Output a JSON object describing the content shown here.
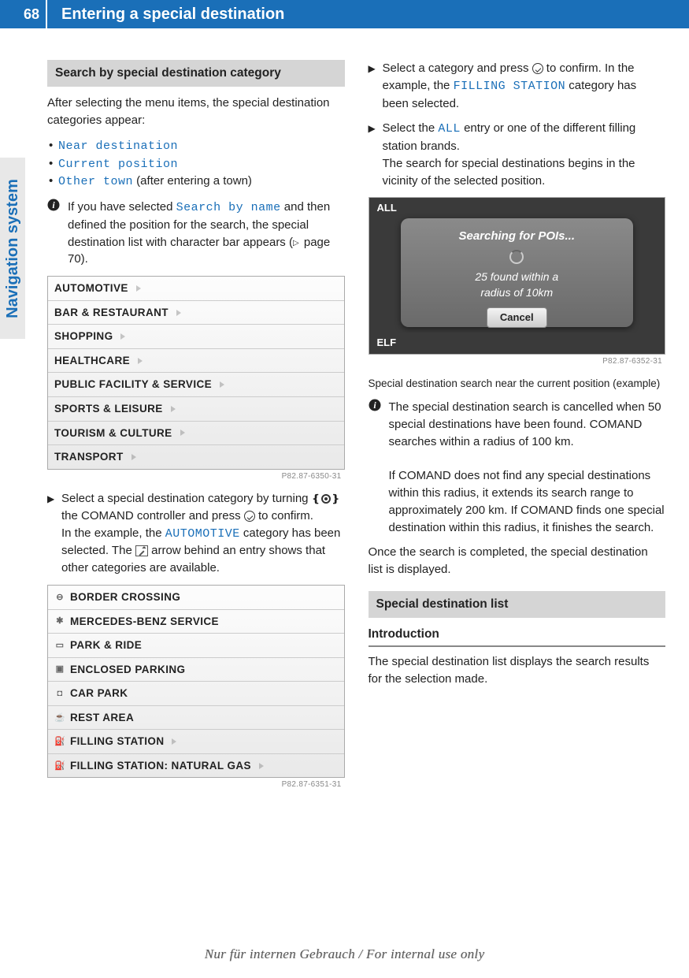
{
  "page_number": "68",
  "header_title": "Entering a special destination",
  "side_tab": "Navigation system",
  "watermark": "Nur für internen Gebrauch / For internal use only",
  "left": {
    "h1": "Search by special destination category",
    "p1": "After selecting the menu items, the special destination categories appear:",
    "bullets": {
      "b1": "Near destination",
      "b2": "Current position",
      "b3_mono": "Other town",
      "b3_rest": " (after entering a town)"
    },
    "note1_a": "If you have selected ",
    "note1_mono": "Search by name",
    "note1_b": " and then defined the position for the search, the special destination list with character bar appears (",
    "note1_pageref": " page 70).",
    "screenshot1": {
      "rows": [
        "AUTOMOTIVE",
        "BAR & RESTAURANT",
        "SHOPPING",
        "HEALTHCARE",
        "PUBLIC FACILITY & SERVICE",
        "SPORTS & LEISURE",
        "TOURISM & CULTURE",
        "TRANSPORT"
      ],
      "caption": "P82.87-6350-31"
    },
    "step1_a": "Select a special destination category by turning ",
    "step1_b": " the COMAND controller and press ",
    "step1_c": " to confirm.",
    "step1_d": "In the example, the ",
    "step1_mono": "AUTOMOTIVE",
    "step1_e": " category has been selected. The ",
    "step1_f": " arrow behind an entry shows that other categories are available.",
    "screenshot2": {
      "rows": [
        {
          "icon": "⊖",
          "label": "BORDER CROSSING"
        },
        {
          "icon": "✱",
          "label": "MERCEDES-BENZ SERVICE"
        },
        {
          "icon": "▭",
          "label": "PARK & RIDE"
        },
        {
          "icon": "▣",
          "label": "ENCLOSED PARKING"
        },
        {
          "icon": "◘",
          "label": "CAR PARK"
        },
        {
          "icon": "☕",
          "label": "REST AREA"
        },
        {
          "icon": "⛽",
          "label": "FILLING STATION",
          "tri": true
        },
        {
          "icon": "⛽",
          "label": "FILLING STATION: NATURAL GAS",
          "tri": true
        }
      ],
      "caption": "P82.87-6351-31"
    }
  },
  "right": {
    "step2_a": "Select a category and press ",
    "step2_b": " to confirm. In the example, the ",
    "step2_mono": "FILLING STATION",
    "step2_c": " category has been selected.",
    "step3_a": "Select the ",
    "step3_mono": "ALL",
    "step3_b": " entry or one of the different filling station brands.",
    "step3_c": "The search for special destinations begins in the vicinity of the selected position.",
    "screenshot3": {
      "top": "ALL",
      "title": "Searching for POIs...",
      "line1": "25 found within a",
      "line2": "radius of 10km",
      "btn": "Cancel",
      "bottom": "ELF",
      "caption": "P82.87-6352-31"
    },
    "caption3": "Special destination search near the current position (example)",
    "note2_a": "The special destination search is cancelled when 50 special destinations have been found. COMAND searches within a radius of 100 km.",
    "note2_b": "If COMAND does not find any special destinations within this radius, it extends its search range to approximately 200 km. If COMAND finds one special destination within this radius, it finishes the search.",
    "p_after": "Once the search is completed, the special destination list is displayed.",
    "h2": "Special destination list",
    "h3": "Introduction",
    "p_intro": "The special destination list displays the search results for the selection made."
  }
}
